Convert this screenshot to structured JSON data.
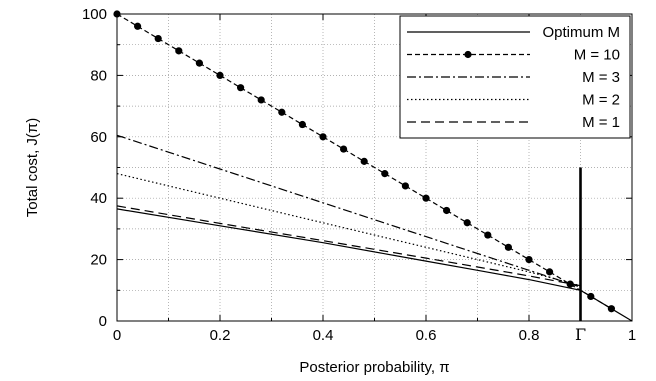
{
  "chart_data": {
    "type": "line",
    "xlabel": "Posterior probability, π",
    "ylabel": "Total cost, J(π)",
    "xlim": [
      0,
      1
    ],
    "ylim": [
      0,
      100
    ],
    "x_ticks": [
      "0",
      "0.2",
      "0.4",
      "0.6",
      "0.8",
      "1"
    ],
    "y_ticks": [
      "0",
      "20",
      "40",
      "60",
      "80",
      "100"
    ],
    "x_tick_values": [
      0,
      0.2,
      0.4,
      0.6,
      0.8,
      1
    ],
    "y_tick_values": [
      0,
      20,
      40,
      60,
      80,
      100
    ],
    "grid": "dotted",
    "legend_position": "top-right",
    "threshold": {
      "label": "Γ",
      "x": 0.9,
      "y_top": 50
    },
    "series": [
      {
        "name": "Optimum M",
        "style": "solid",
        "x": [
          0,
          0.2,
          0.4,
          0.6,
          0.7,
          0.8,
          0.9,
          0.92,
          0.96,
          1.0
        ],
        "y": [
          36.5,
          31,
          25.5,
          19.5,
          16.5,
          13.5,
          10,
          8,
          4,
          0
        ]
      },
      {
        "name": "M = 10",
        "style": "dashed-dots",
        "x": [
          0,
          0.04,
          0.08,
          0.12,
          0.16,
          0.2,
          0.24,
          0.28,
          0.32,
          0.36,
          0.4,
          0.44,
          0.48,
          0.52,
          0.56,
          0.6,
          0.64,
          0.68,
          0.72,
          0.76,
          0.8,
          0.84,
          0.88,
          0.92,
          0.96
        ],
        "y": [
          100,
          96,
          92,
          88,
          84,
          80,
          76,
          72,
          68,
          64,
          60,
          56,
          52,
          48,
          44,
          40,
          36,
          32,
          28,
          24,
          20,
          16,
          12,
          8,
          4
        ]
      },
      {
        "name": "M = 3",
        "style": "dash-dot",
        "x": [
          0,
          0.2,
          0.4,
          0.6,
          0.7,
          0.8,
          0.9
        ],
        "y": [
          60.5,
          49.5,
          38.5,
          27.5,
          22,
          16.5,
          11
        ]
      },
      {
        "name": "M = 2",
        "style": "dotted",
        "x": [
          0,
          0.2,
          0.4,
          0.6,
          0.7,
          0.8,
          0.9
        ],
        "y": [
          48,
          40,
          32,
          24,
          20,
          16,
          11.5
        ]
      },
      {
        "name": "M = 1",
        "style": "dashed",
        "x": [
          0,
          0.2,
          0.4,
          0.6,
          0.7,
          0.8,
          0.9
        ],
        "y": [
          37.5,
          31.8,
          26.2,
          20.5,
          17.6,
          14.7,
          11.5
        ]
      }
    ]
  }
}
